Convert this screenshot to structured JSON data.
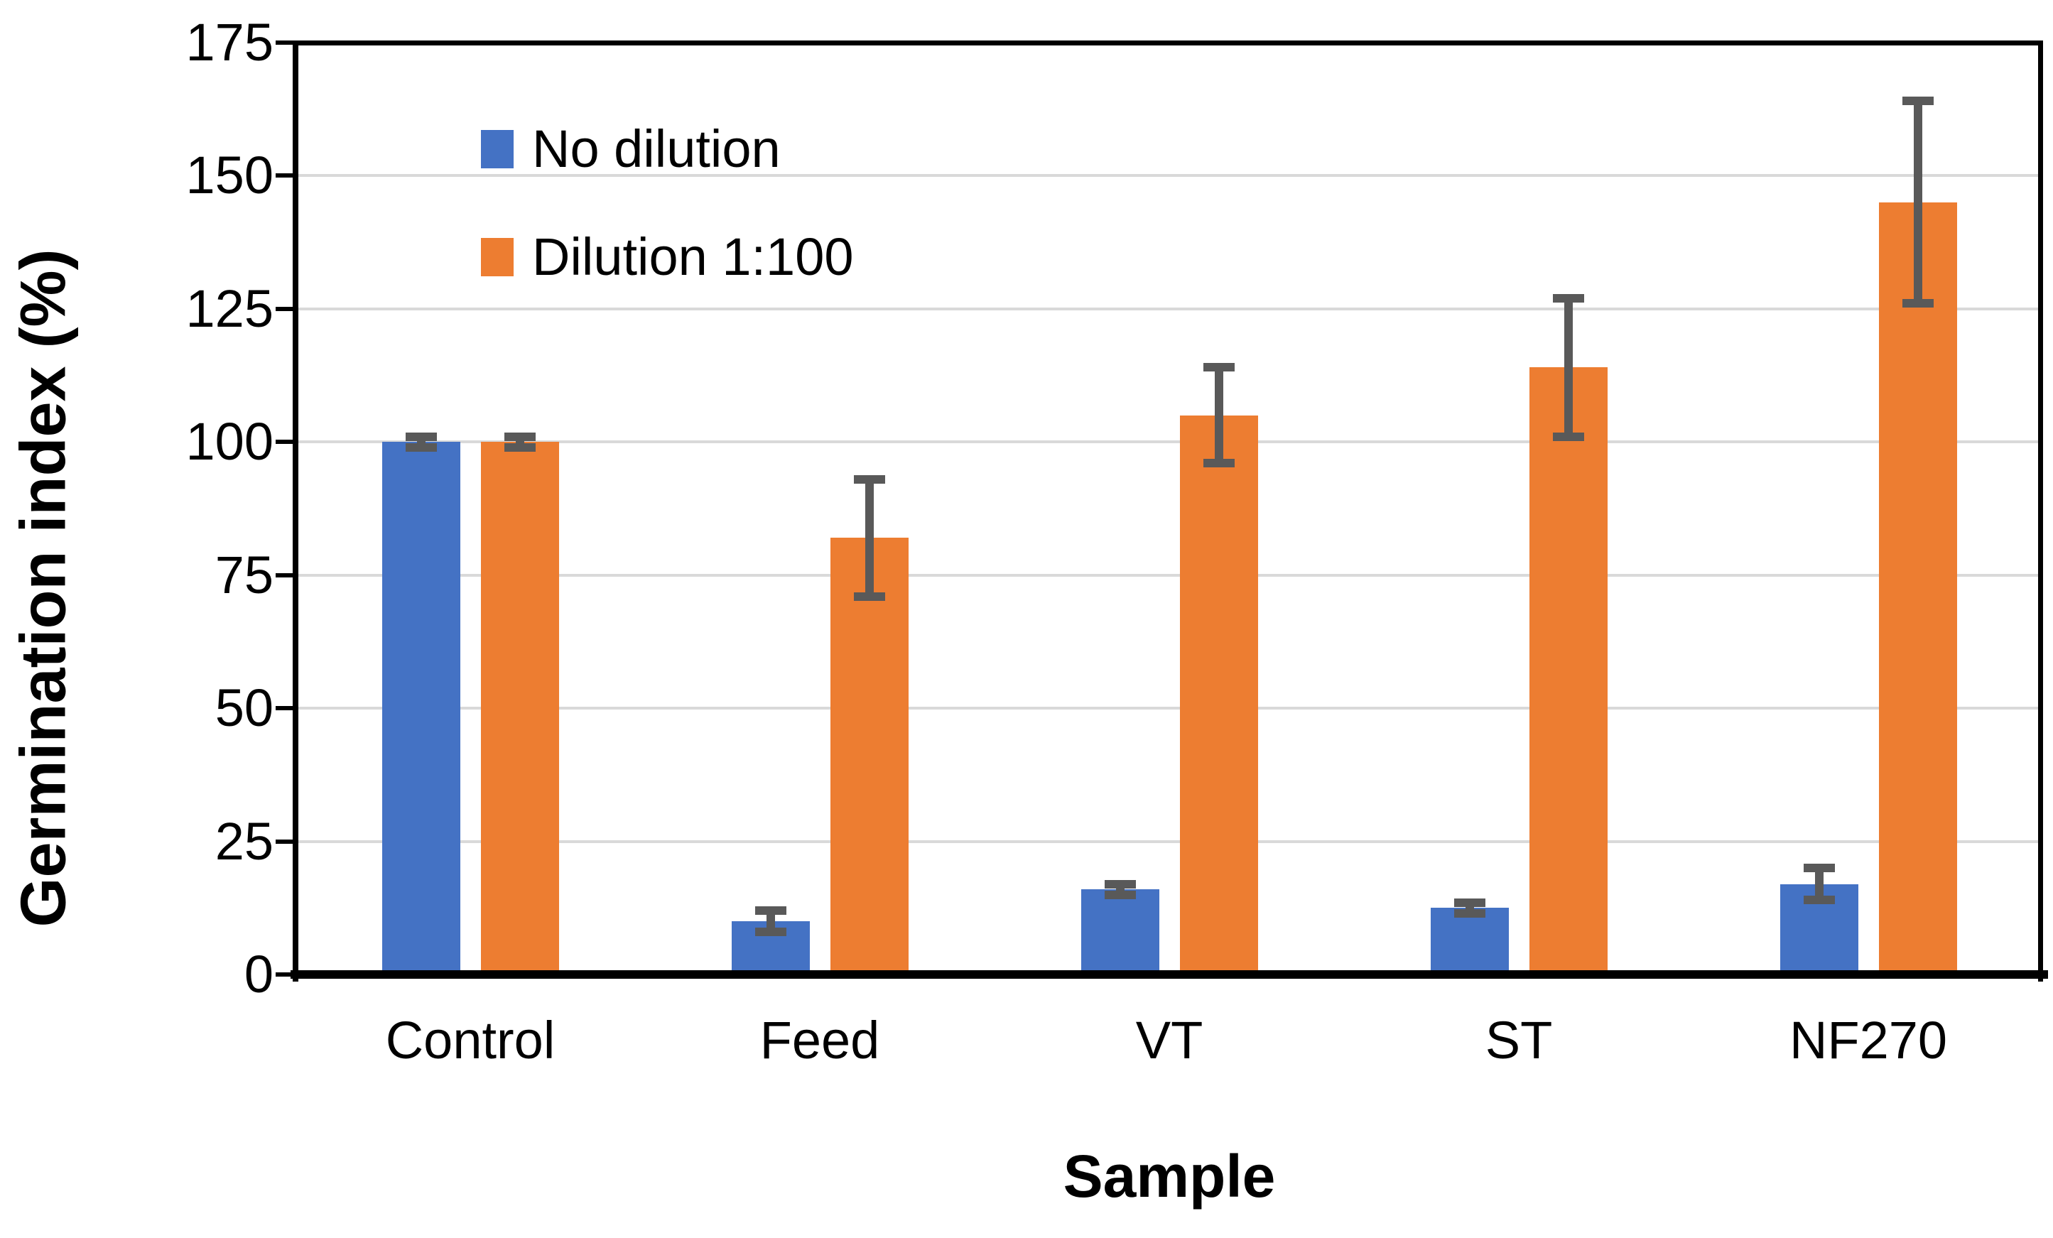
{
  "chart_data": {
    "type": "bar",
    "title": "",
    "xlabel": "Sample",
    "ylabel": "Germination index (%)",
    "categories": [
      "Control",
      "Feed",
      "VT",
      "ST",
      "NF270"
    ],
    "series": [
      {
        "name": "No dilution",
        "color": "#4472C4",
        "values": [
          100,
          10,
          16,
          12.5,
          17
        ],
        "errors": [
          1,
          2,
          1,
          1,
          3
        ]
      },
      {
        "name": "Dilution 1:100",
        "color": "#ED7D31",
        "values": [
          100,
          82,
          105,
          114,
          145
        ],
        "errors": [
          1,
          11,
          9,
          13,
          19
        ]
      }
    ],
    "ylim": [
      0,
      175
    ],
    "yticks": [
      0,
      25,
      50,
      75,
      100,
      125,
      150,
      175
    ],
    "grid": true,
    "legend_position": "top-left-inside",
    "error_bar_color": "#595959",
    "gridline_color": "#D9D9D9",
    "axis_color": "#000000",
    "background_color": "#FFFFFF"
  }
}
